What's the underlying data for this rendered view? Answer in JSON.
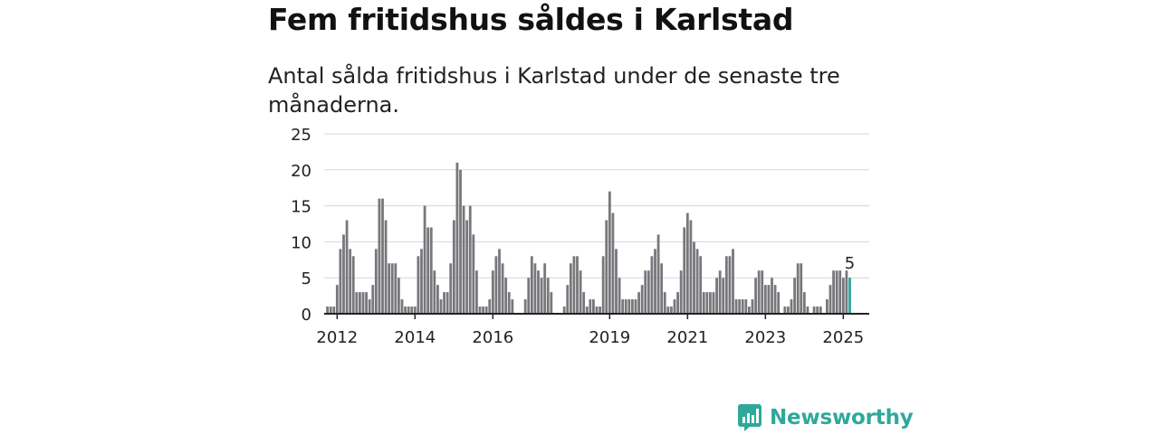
{
  "title": "Fem fritidshus såldes i Karlstad",
  "subtitle": "Antal sålda fritidshus i Karlstad under de senaste tre månaderna.",
  "brand": "Newsworthy",
  "colors": {
    "bar": "#77777c",
    "highlight": "#2aa79b",
    "grid": "#d7d7d7",
    "axis": "#222222",
    "brand": "#2fa89a"
  },
  "chart_data": {
    "type": "bar",
    "ylim": [
      0,
      25
    ],
    "yticks": [
      0,
      5,
      10,
      15,
      20,
      25
    ],
    "x_start": "2011-12",
    "x_end": "2025-12",
    "xticks": [
      {
        "label": "2012",
        "x": "2012-04"
      },
      {
        "label": "2014",
        "x": "2014-04"
      },
      {
        "label": "2016",
        "x": "2016-04"
      },
      {
        "label": "2019",
        "x": "2019-04"
      },
      {
        "label": "2021",
        "x": "2021-04"
      },
      {
        "label": "2023",
        "x": "2023-04"
      },
      {
        "label": "2025",
        "x": "2025-04"
      }
    ],
    "months": [
      {
        "x": "2012-01",
        "value": 1
      },
      {
        "x": "2012-02",
        "value": 1
      },
      {
        "x": "2012-03",
        "value": 1
      },
      {
        "x": "2012-04",
        "value": 4
      },
      {
        "x": "2012-05",
        "value": 9
      },
      {
        "x": "2012-06",
        "value": 11
      },
      {
        "x": "2012-07",
        "value": 13
      },
      {
        "x": "2012-08",
        "value": 9
      },
      {
        "x": "2012-09",
        "value": 8
      },
      {
        "x": "2012-10",
        "value": 3
      },
      {
        "x": "2012-11",
        "value": 3
      },
      {
        "x": "2012-12",
        "value": 3
      },
      {
        "x": "2013-01",
        "value": 3
      },
      {
        "x": "2013-02",
        "value": 2
      },
      {
        "x": "2013-03",
        "value": 4
      },
      {
        "x": "2013-04",
        "value": 9
      },
      {
        "x": "2013-05",
        "value": 16
      },
      {
        "x": "2013-06",
        "value": 16
      },
      {
        "x": "2013-07",
        "value": 13
      },
      {
        "x": "2013-08",
        "value": 7
      },
      {
        "x": "2013-09",
        "value": 7
      },
      {
        "x": "2013-10",
        "value": 7
      },
      {
        "x": "2013-11",
        "value": 5
      },
      {
        "x": "2013-12",
        "value": 2
      },
      {
        "x": "2014-01",
        "value": 1
      },
      {
        "x": "2014-02",
        "value": 1
      },
      {
        "x": "2014-03",
        "value": 1
      },
      {
        "x": "2014-04",
        "value": 1
      },
      {
        "x": "2014-05",
        "value": 8
      },
      {
        "x": "2014-06",
        "value": 9
      },
      {
        "x": "2014-07",
        "value": 15
      },
      {
        "x": "2014-08",
        "value": 12
      },
      {
        "x": "2014-09",
        "value": 12
      },
      {
        "x": "2014-10",
        "value": 6
      },
      {
        "x": "2014-11",
        "value": 4
      },
      {
        "x": "2014-12",
        "value": 2
      },
      {
        "x": "2015-01",
        "value": 3
      },
      {
        "x": "2015-02",
        "value": 3
      },
      {
        "x": "2015-03",
        "value": 7
      },
      {
        "x": "2015-04",
        "value": 13
      },
      {
        "x": "2015-05",
        "value": 21
      },
      {
        "x": "2015-06",
        "value": 20
      },
      {
        "x": "2015-07",
        "value": 15
      },
      {
        "x": "2015-08",
        "value": 13
      },
      {
        "x": "2015-09",
        "value": 15
      },
      {
        "x": "2015-10",
        "value": 11
      },
      {
        "x": "2015-11",
        "value": 6
      },
      {
        "x": "2015-12",
        "value": 1
      },
      {
        "x": "2016-01",
        "value": 1
      },
      {
        "x": "2016-02",
        "value": 1
      },
      {
        "x": "2016-03",
        "value": 2
      },
      {
        "x": "2016-04",
        "value": 6
      },
      {
        "x": "2016-05",
        "value": 8
      },
      {
        "x": "2016-06",
        "value": 9
      },
      {
        "x": "2016-07",
        "value": 7
      },
      {
        "x": "2016-08",
        "value": 5
      },
      {
        "x": "2016-09",
        "value": 3
      },
      {
        "x": "2016-10",
        "value": 2
      },
      {
        "x": "2017-02",
        "value": 2
      },
      {
        "x": "2017-03",
        "value": 5
      },
      {
        "x": "2017-04",
        "value": 8
      },
      {
        "x": "2017-05",
        "value": 7
      },
      {
        "x": "2017-06",
        "value": 6
      },
      {
        "x": "2017-07",
        "value": 5
      },
      {
        "x": "2017-08",
        "value": 7
      },
      {
        "x": "2017-09",
        "value": 5
      },
      {
        "x": "2017-10",
        "value": 3
      },
      {
        "x": "2018-02",
        "value": 1
      },
      {
        "x": "2018-03",
        "value": 4
      },
      {
        "x": "2018-04",
        "value": 7
      },
      {
        "x": "2018-05",
        "value": 8
      },
      {
        "x": "2018-06",
        "value": 8
      },
      {
        "x": "2018-07",
        "value": 6
      },
      {
        "x": "2018-08",
        "value": 3
      },
      {
        "x": "2018-09",
        "value": 1
      },
      {
        "x": "2018-10",
        "value": 2
      },
      {
        "x": "2018-11",
        "value": 2
      },
      {
        "x": "2018-12",
        "value": 1
      },
      {
        "x": "2019-01",
        "value": 1
      },
      {
        "x": "2019-02",
        "value": 8
      },
      {
        "x": "2019-03",
        "value": 13
      },
      {
        "x": "2019-04",
        "value": 17
      },
      {
        "x": "2019-05",
        "value": 14
      },
      {
        "x": "2019-06",
        "value": 9
      },
      {
        "x": "2019-07",
        "value": 5
      },
      {
        "x": "2019-08",
        "value": 2
      },
      {
        "x": "2019-09",
        "value": 2
      },
      {
        "x": "2019-10",
        "value": 2
      },
      {
        "x": "2019-11",
        "value": 2
      },
      {
        "x": "2019-12",
        "value": 2
      },
      {
        "x": "2020-01",
        "value": 3
      },
      {
        "x": "2020-02",
        "value": 4
      },
      {
        "x": "2020-03",
        "value": 6
      },
      {
        "x": "2020-04",
        "value": 6
      },
      {
        "x": "2020-05",
        "value": 8
      },
      {
        "x": "2020-06",
        "value": 9
      },
      {
        "x": "2020-07",
        "value": 11
      },
      {
        "x": "2020-08",
        "value": 7
      },
      {
        "x": "2020-09",
        "value": 3
      },
      {
        "x": "2020-10",
        "value": 1
      },
      {
        "x": "2020-11",
        "value": 1
      },
      {
        "x": "2020-12",
        "value": 2
      },
      {
        "x": "2021-01",
        "value": 3
      },
      {
        "x": "2021-02",
        "value": 6
      },
      {
        "x": "2021-03",
        "value": 12
      },
      {
        "x": "2021-04",
        "value": 14
      },
      {
        "x": "2021-05",
        "value": 13
      },
      {
        "x": "2021-06",
        "value": 10
      },
      {
        "x": "2021-07",
        "value": 9
      },
      {
        "x": "2021-08",
        "value": 8
      },
      {
        "x": "2021-09",
        "value": 3
      },
      {
        "x": "2021-10",
        "value": 3
      },
      {
        "x": "2021-11",
        "value": 3
      },
      {
        "x": "2021-12",
        "value": 3
      },
      {
        "x": "2022-01",
        "value": 5
      },
      {
        "x": "2022-02",
        "value": 6
      },
      {
        "x": "2022-03",
        "value": 5
      },
      {
        "x": "2022-04",
        "value": 8
      },
      {
        "x": "2022-05",
        "value": 8
      },
      {
        "x": "2022-06",
        "value": 9
      },
      {
        "x": "2022-07",
        "value": 2
      },
      {
        "x": "2022-08",
        "value": 2
      },
      {
        "x": "2022-09",
        "value": 2
      },
      {
        "x": "2022-10",
        "value": 2
      },
      {
        "x": "2022-11",
        "value": 1
      },
      {
        "x": "2022-12",
        "value": 2
      },
      {
        "x": "2023-01",
        "value": 5
      },
      {
        "x": "2023-02",
        "value": 6
      },
      {
        "x": "2023-03",
        "value": 6
      },
      {
        "x": "2023-04",
        "value": 4
      },
      {
        "x": "2023-05",
        "value": 4
      },
      {
        "x": "2023-06",
        "value": 5
      },
      {
        "x": "2023-07",
        "value": 4
      },
      {
        "x": "2023-08",
        "value": 3
      },
      {
        "x": "2023-10",
        "value": 1
      },
      {
        "x": "2023-11",
        "value": 1
      },
      {
        "x": "2023-12",
        "value": 2
      },
      {
        "x": "2024-01",
        "value": 5
      },
      {
        "x": "2024-02",
        "value": 7
      },
      {
        "x": "2024-03",
        "value": 7
      },
      {
        "x": "2024-04",
        "value": 3
      },
      {
        "x": "2024-05",
        "value": 1
      },
      {
        "x": "2024-07",
        "value": 1
      },
      {
        "x": "2024-08",
        "value": 1
      },
      {
        "x": "2024-09",
        "value": 1
      },
      {
        "x": "2024-11",
        "value": 2
      },
      {
        "x": "2024-12",
        "value": 4
      },
      {
        "x": "2025-01",
        "value": 6
      },
      {
        "x": "2025-02",
        "value": 6
      },
      {
        "x": "2025-03",
        "value": 6
      },
      {
        "x": "2025-04",
        "value": 5
      },
      {
        "x": "2025-05",
        "value": 6
      },
      {
        "x": "2025-06",
        "value": 5,
        "highlight": true
      }
    ],
    "annotation": {
      "x": "2025-06",
      "label": "5"
    }
  }
}
